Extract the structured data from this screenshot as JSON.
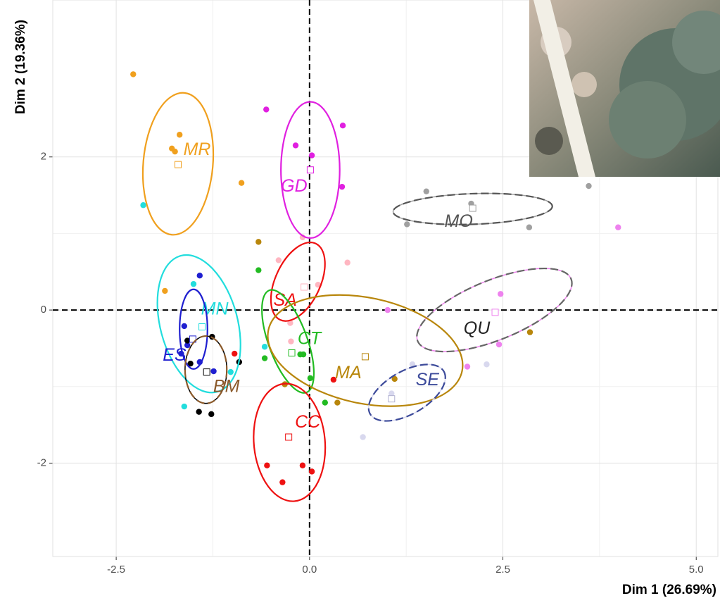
{
  "chart_data": {
    "type": "scatter",
    "x_label": "Dim 1 (26.69%)",
    "y_label": "Dim 2 (19.36%)",
    "xlim": [
      -3.32,
      5.28
    ],
    "ylim": [
      -3.22,
      4.05
    ],
    "xticks": [
      {
        "value": -2.5,
        "label": "-2.5"
      },
      {
        "value": 0,
        "label": "0.0"
      },
      {
        "value": 2.5,
        "label": "2.5"
      },
      {
        "value": 5,
        "label": "5.0"
      }
    ],
    "yticks": [
      -2,
      0,
      2
    ],
    "grid": true,
    "minor_grid": true,
    "hlines": [
      0
    ],
    "vlines": [
      0
    ],
    "series": [
      {
        "name": "MR",
        "color": "#f0a01e",
        "ellipse_color": "#f0a01e",
        "dashed": false,
        "x": [
          -2.28,
          -1.68,
          -1.78,
          -1.74,
          -0.88,
          -1.87
        ],
        "y": [
          3.08,
          2.29,
          2.11,
          2.07,
          1.66,
          0.25
        ],
        "centroid": [
          -1.7,
          1.9
        ],
        "ellipse": {
          "cx": -1.7,
          "cy": 1.91,
          "rx": 0.45,
          "ry": 0.93,
          "angle": -5
        }
      },
      {
        "name": "GD",
        "color": "#e020e0",
        "ellipse_color": "#e020e0",
        "dashed": false,
        "x": [
          -0.56,
          -0.18,
          0.03,
          0.43,
          0.42
        ],
        "y": [
          2.62,
          2.15,
          2.02,
          2.41,
          1.61
        ],
        "centroid": [
          0.01,
          1.83
        ],
        "ellipse": {
          "cx": 0.01,
          "cy": 1.83,
          "rx": 0.38,
          "ry": 0.89,
          "angle": 0
        }
      },
      {
        "name": "MO",
        "color": "#a0a0a0",
        "ellipse_color": "#555555",
        "dashed": true,
        "x": [
          1.51,
          2.09,
          2.84,
          3.61,
          1.26
        ],
        "y": [
          1.55,
          1.39,
          1.08,
          1.62,
          1.12
        ],
        "centroid": [
          2.11,
          1.33
        ],
        "ellipse": {
          "cx": 2.11,
          "cy": 1.32,
          "rx": 1.03,
          "ry": 0.2,
          "angle": 2
        }
      },
      {
        "name": "QU",
        "color": "#ee82ee",
        "ellipse_color": "#666666",
        "dashed": true,
        "x": [
          3.99,
          2.47,
          2.45,
          2.04,
          1.01
        ],
        "y": [
          1.08,
          0.21,
          -0.45,
          -0.74,
          0.0
        ],
        "centroid": [
          2.4,
          -0.03
        ],
        "ellipse": {
          "cx": 2.39,
          "cy": 0.0,
          "rx": 1.07,
          "ry": 0.39,
          "angle": 22
        }
      },
      {
        "name": "SA",
        "color": "#ffb6c1",
        "ellipse_color": "#ee1111",
        "dashed": false,
        "x": [
          -0.4,
          -0.09,
          0.11,
          0.49,
          -0.25,
          -0.24
        ],
        "y": [
          0.65,
          0.95,
          0.33,
          0.62,
          -0.17,
          -0.41
        ],
        "centroid": [
          -0.07,
          0.3
        ],
        "ellipse": {
          "cx": -0.15,
          "cy": 0.37,
          "rx": 0.29,
          "ry": 0.55,
          "angle": -25
        }
      },
      {
        "name": "CT",
        "color": "#22bb22",
        "ellipse_color": "#22bb22",
        "dashed": false,
        "x": [
          -0.66,
          -0.58,
          -0.08,
          -0.12,
          0.01,
          0.2
        ],
        "y": [
          0.52,
          -0.63,
          -0.58,
          -0.58,
          -0.89,
          -1.21
        ],
        "centroid": [
          -0.23,
          -0.56
        ],
        "ellipse": {
          "cx": -0.28,
          "cy": -0.41,
          "rx": 0.25,
          "ry": 0.71,
          "angle": 20
        }
      },
      {
        "name": "MA",
        "color": "#b8860b",
        "ellipse_color": "#b8860b",
        "dashed": false,
        "x": [
          -0.66,
          -0.32,
          0.36,
          1.1,
          2.85
        ],
        "y": [
          0.89,
          -0.97,
          -1.21,
          -0.9,
          -0.29
        ],
        "centroid": [
          0.72,
          -0.61
        ],
        "ellipse": {
          "cx": 0.72,
          "cy": -0.53,
          "rx": 1.28,
          "ry": 0.69,
          "angle": -12
        }
      },
      {
        "name": "CC",
        "color": "#ee1111",
        "ellipse_color": "#ee1111",
        "dashed": false,
        "x": [
          -0.55,
          -0.35,
          -0.09,
          0.03,
          0.31,
          -0.97
        ],
        "y": [
          -2.03,
          -2.25,
          -2.03,
          -2.11,
          -0.91,
          -0.57
        ],
        "centroid": [
          -0.27,
          -1.66
        ],
        "ellipse": {
          "cx": -0.26,
          "cy": -1.73,
          "rx": 0.46,
          "ry": 0.77,
          "angle": 5
        }
      },
      {
        "name": "SE",
        "color": "#d8d8ee",
        "ellipse_color": "#3c4a9a",
        "dashed": true,
        "x": [
          1.33,
          0.69,
          1.06,
          2.29
        ],
        "y": [
          -0.71,
          -1.66,
          -1.09,
          -0.71
        ],
        "centroid": [
          1.06,
          -1.16
        ],
        "ellipse": {
          "cx": 1.26,
          "cy": -1.08,
          "rx": 0.55,
          "ry": 0.28,
          "angle": 30
        }
      },
      {
        "name": "MN",
        "color": "#22dddd",
        "ellipse_color": "#22dddd",
        "dashed": false,
        "x": [
          -2.15,
          -1.5,
          -1.62,
          -0.58,
          -1.02
        ],
        "y": [
          1.37,
          0.34,
          -1.26,
          -0.48,
          -0.81
        ],
        "centroid": [
          -1.39,
          -0.22
        ],
        "ellipse": {
          "cx": -1.43,
          "cy": -0.18,
          "rx": 0.5,
          "ry": 0.92,
          "angle": 15
        }
      },
      {
        "name": "ES",
        "color": "#1f1fd0",
        "ellipse_color": "#1f1fd0",
        "dashed": false,
        "x": [
          -1.42,
          -1.62,
          -1.58,
          -1.66,
          -1.42,
          -1.24
        ],
        "y": [
          0.45,
          -0.21,
          -0.46,
          -0.57,
          -0.68,
          -0.8
        ],
        "centroid": [
          -1.51,
          -0.38
        ],
        "ellipse": {
          "cx": -1.5,
          "cy": -0.25,
          "rx": 0.18,
          "ry": 0.52,
          "angle": 0
        }
      },
      {
        "name": "BM",
        "color": "#000000",
        "ellipse_color": "#8b5a2b",
        "dashed": true,
        "x": [
          -1.58,
          -1.26,
          -1.54,
          -1.43,
          -1.27,
          -0.91
        ],
        "y": [
          -0.4,
          -0.35,
          -0.7,
          -1.33,
          -1.36,
          -0.68
        ],
        "centroid": [
          -1.33,
          -0.81
        ],
        "ellipse": {
          "cx": -1.34,
          "cy": -0.78,
          "rx": 0.27,
          "ry": 0.44,
          "angle": 0
        }
      }
    ]
  }
}
